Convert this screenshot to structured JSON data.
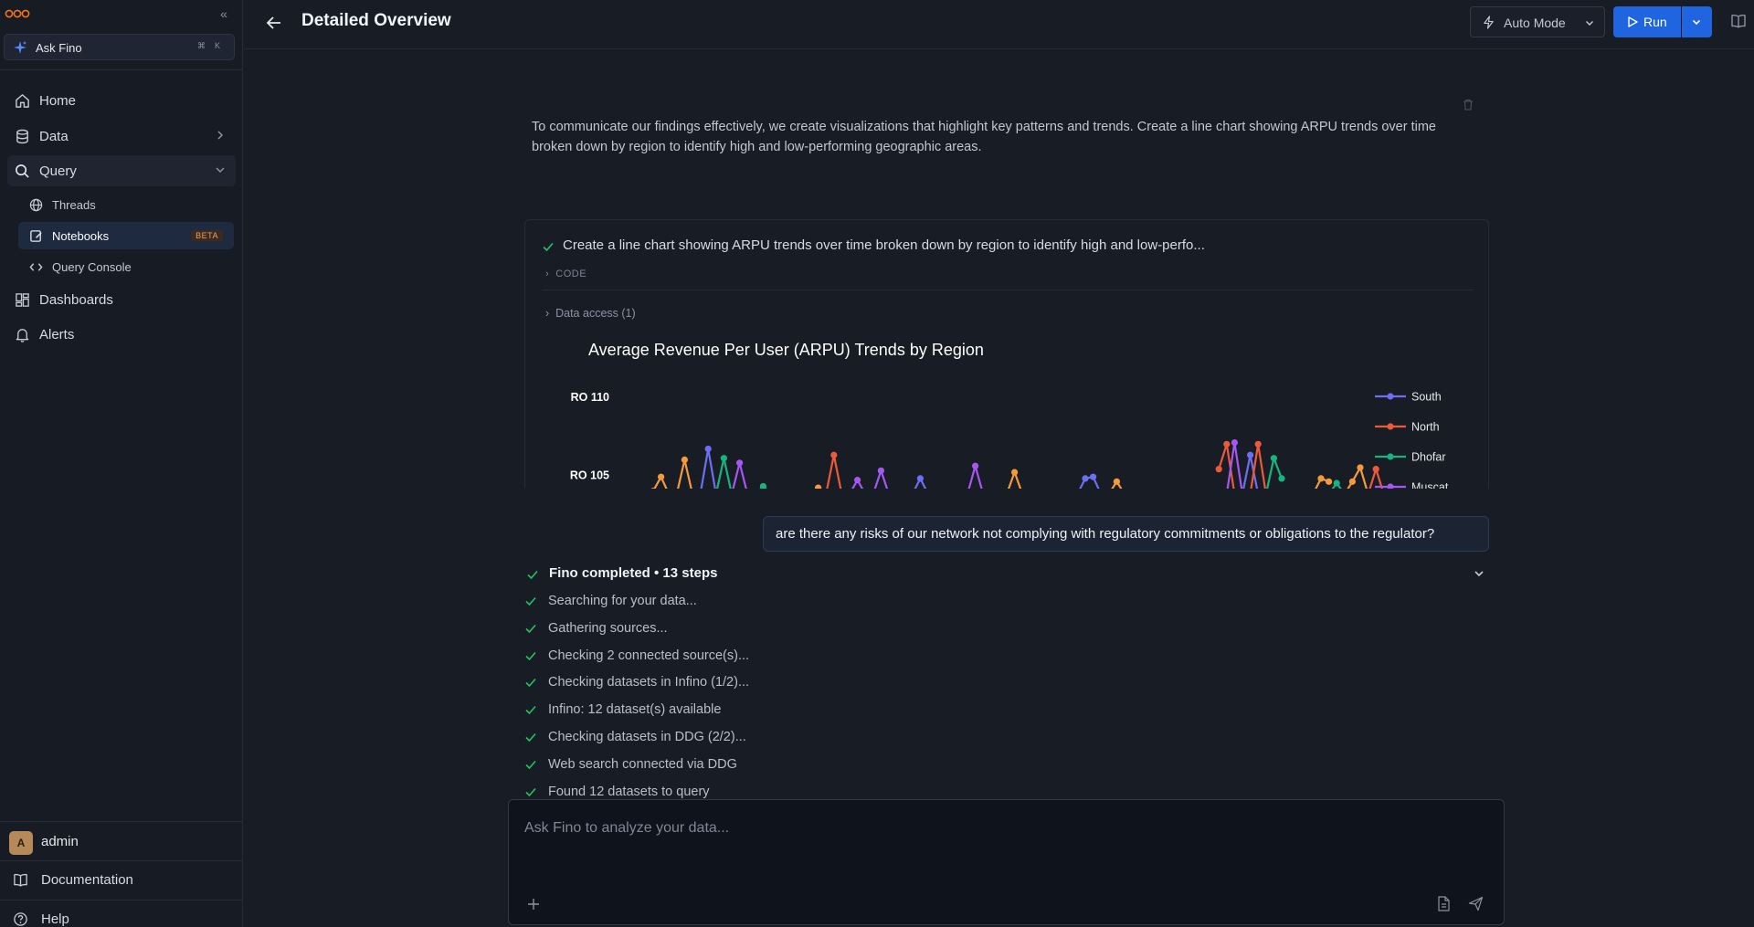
{
  "sidebar": {
    "ask": {
      "label": "Ask Fino",
      "shortcut_cmd": "⌘",
      "shortcut_key": "K"
    },
    "nav": [
      {
        "label": "Home"
      },
      {
        "label": "Data"
      },
      {
        "label": "Query"
      },
      {
        "label": "Dashboards"
      },
      {
        "label": "Alerts"
      }
    ],
    "query_items": [
      {
        "label": "Threads"
      },
      {
        "label": "Notebooks",
        "badge": "BETA"
      },
      {
        "label": "Query Console"
      }
    ],
    "user": {
      "initial": "A",
      "name": "admin"
    },
    "footer": [
      {
        "label": "Documentation"
      },
      {
        "label": "Help"
      }
    ]
  },
  "header": {
    "title": "Detailed Overview",
    "mode_label": "Auto Mode",
    "run_label": "Run"
  },
  "notebook": {
    "prompt": "To communicate our findings effectively, we create visualizations that highlight key patterns and trends. Create a line chart showing ARPU trends over time broken down by region to identify high and low-performing geographic areas.",
    "task": "Create a line chart showing ARPU trends over time broken down by region to identify high and low-perfo...",
    "code_label": "CODE",
    "data_access_label": "Data access (1)"
  },
  "chart_data": {
    "type": "line",
    "title": "Average Revenue Per User (ARPU) Trends by Region",
    "xlabel": "",
    "ylabel": "",
    "y_ticks": [
      "RO 110",
      "RO 105"
    ],
    "ylim": [
      103.8,
      110.2
    ],
    "legend_position": "right",
    "series": [
      {
        "name": "South",
        "color": "#6d6ff2",
        "values": []
      },
      {
        "name": "North",
        "color": "#ec5a3a",
        "values": []
      },
      {
        "name": "Dhofar",
        "color": "#18b47f",
        "values": []
      },
      {
        "name": "Muscat",
        "color": "#a557f2",
        "values": []
      }
    ],
    "unlabeled_series_color": "#f59a3c",
    "note_visible_segments": [
      {
        "series": "unlabeled",
        "x": [
          0,
          1,
          2
        ],
        "y": [
          104.0,
          104.9,
          103.8
        ]
      },
      {
        "series": "unlabeled",
        "x": [
          3,
          4,
          5
        ],
        "y": [
          103.8,
          106.0,
          103.8
        ]
      },
      {
        "series": "South",
        "x": [
          6,
          7,
          8
        ],
        "y": [
          103.8,
          106.7,
          103.8
        ]
      },
      {
        "series": "Dhofar",
        "x": [
          8,
          9,
          10
        ],
        "y": [
          103.8,
          106.1,
          103.8
        ]
      },
      {
        "series": "Muscat",
        "x": [
          10,
          11,
          12
        ],
        "y": [
          103.8,
          105.8,
          103.8
        ]
      },
      {
        "series": "Dhofar",
        "x": [
          13,
          14,
          15
        ],
        "y": [
          103.8,
          104.3,
          103.8
        ]
      },
      {
        "series": "unlabeled",
        "x": [
          20,
          21,
          22
        ],
        "y": [
          103.8,
          104.2,
          103.8
        ]
      },
      {
        "series": "North",
        "x": [
          22,
          23,
          24
        ],
        "y": [
          103.8,
          106.3,
          103.8
        ]
      },
      {
        "series": "Muscat",
        "x": [
          25,
          26,
          27
        ],
        "y": [
          103.8,
          104.7,
          103.8
        ]
      },
      {
        "series": "Muscat",
        "x": [
          28,
          29,
          30
        ],
        "y": [
          103.8,
          105.3,
          103.8
        ]
      },
      {
        "series": "South",
        "x": [
          33,
          34,
          35
        ],
        "y": [
          103.8,
          104.8,
          103.8
        ]
      },
      {
        "series": "Muscat",
        "x": [
          40,
          41,
          42
        ],
        "y": [
          103.8,
          105.6,
          103.8
        ]
      },
      {
        "series": "unlabeled",
        "x": [
          45,
          46,
          47
        ],
        "y": [
          103.8,
          105.2,
          103.8
        ]
      },
      {
        "series": "South",
        "x": [
          54,
          55,
          56,
          57
        ],
        "y": [
          103.8,
          104.8,
          104.9,
          103.8
        ]
      },
      {
        "series": "unlabeled",
        "x": [
          58,
          59,
          60
        ],
        "y": [
          103.8,
          104.6,
          103.8
        ]
      },
      {
        "series": "North",
        "x": [
          72,
          73,
          74
        ],
        "y": [
          105.4,
          107.0,
          103.8
        ]
      },
      {
        "series": "Muscat",
        "x": [
          73,
          74,
          75
        ],
        "y": [
          103.8,
          107.1,
          103.8
        ]
      },
      {
        "series": "South",
        "x": [
          75,
          76,
          77
        ],
        "y": [
          103.8,
          106.3,
          103.8
        ]
      },
      {
        "series": "North",
        "x": [
          76,
          77,
          78
        ],
        "y": [
          103.8,
          107.0,
          103.8
        ]
      },
      {
        "series": "Dhofar",
        "x": [
          78,
          79,
          80
        ],
        "y": [
          103.8,
          106.1,
          104.8
        ]
      },
      {
        "series": "unlabeled",
        "x": [
          84,
          85,
          86
        ],
        "y": [
          103.8,
          104.8,
          104.6
        ]
      },
      {
        "series": "Dhofar",
        "x": [
          86,
          87,
          88
        ],
        "y": [
          103.8,
          104.5,
          103.8
        ]
      },
      {
        "series": "unlabeled",
        "x": [
          88,
          89,
          90,
          91
        ],
        "y": [
          103.8,
          104.6,
          105.5,
          103.8
        ]
      },
      {
        "series": "North",
        "x": [
          91,
          92,
          93
        ],
        "y": [
          103.8,
          105.4,
          103.8
        ]
      }
    ]
  },
  "chat": {
    "question": "are there any risks of our network not complying with regulatory commitments or obligations to the regulator?",
    "status": "Fino completed • 13 steps",
    "steps": [
      "Searching for your data...",
      "Gathering sources...",
      "Checking 2 connected source(s)...",
      "Checking datasets in Infino (1/2)...",
      "Infino: 12 dataset(s) available",
      "Checking datasets in DDG (2/2)...",
      "Web search connected via DDG",
      "Found 12 datasets to query"
    ]
  },
  "composer": {
    "placeholder": "Ask Fino to analyze your data..."
  },
  "colors": {
    "accent": "#2065e0",
    "success": "#22c55e",
    "badge": "#f59e5c"
  }
}
